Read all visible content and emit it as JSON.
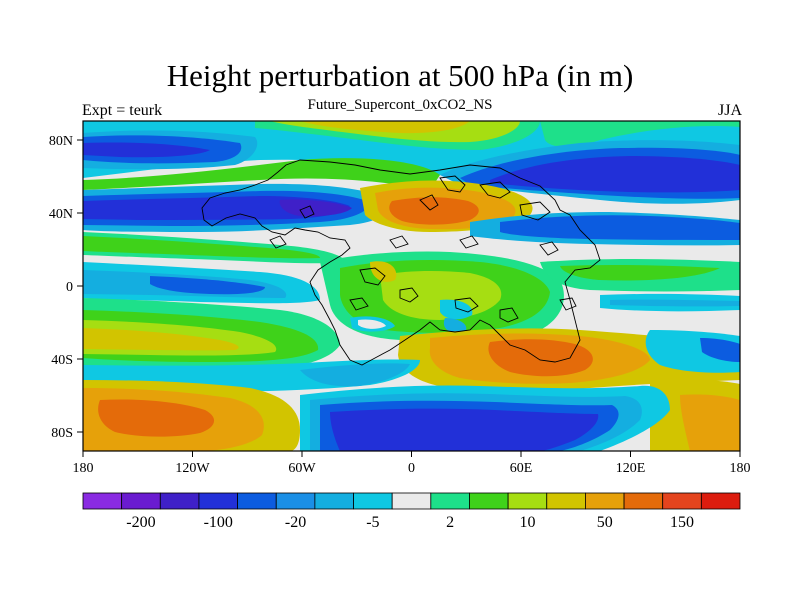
{
  "title": "Height perturbation at 500 hPa (in m)",
  "subtitle": "Future_Supercont_0xCO2_NS",
  "left_label": "Expt = teurk",
  "right_label": "JJA",
  "x_ticks": [
    "180",
    "120W",
    "60W",
    "0",
    "60E",
    "120E",
    "180"
  ],
  "y_ticks": [
    "80N",
    "40N",
    "0",
    "40S",
    "80S"
  ],
  "colorbar": {
    "colors": [
      "#8a2be2",
      "#6a1bd0",
      "#3f20c8",
      "#2230d8",
      "#0c5ce0",
      "#1a8fe6",
      "#14aee0",
      "#0fc8e3",
      "#eaeaea",
      "#1ee08a",
      "#3fd21a",
      "#a6de12",
      "#d2c400",
      "#e6a10a",
      "#e46b0a",
      "#e4441e",
      "#dc1c0e"
    ],
    "labels": [
      {
        "text": "-200",
        "after_box": 1
      },
      {
        "text": "-100",
        "after_box": 3
      },
      {
        "text": "-20",
        "after_box": 5
      },
      {
        "text": "-5",
        "after_box": 7
      },
      {
        "text": "2",
        "after_box": 9
      },
      {
        "text": "10",
        "after_box": 11
      },
      {
        "text": "50",
        "after_box": 13
      },
      {
        "text": "150",
        "after_box": 15
      }
    ]
  }
}
